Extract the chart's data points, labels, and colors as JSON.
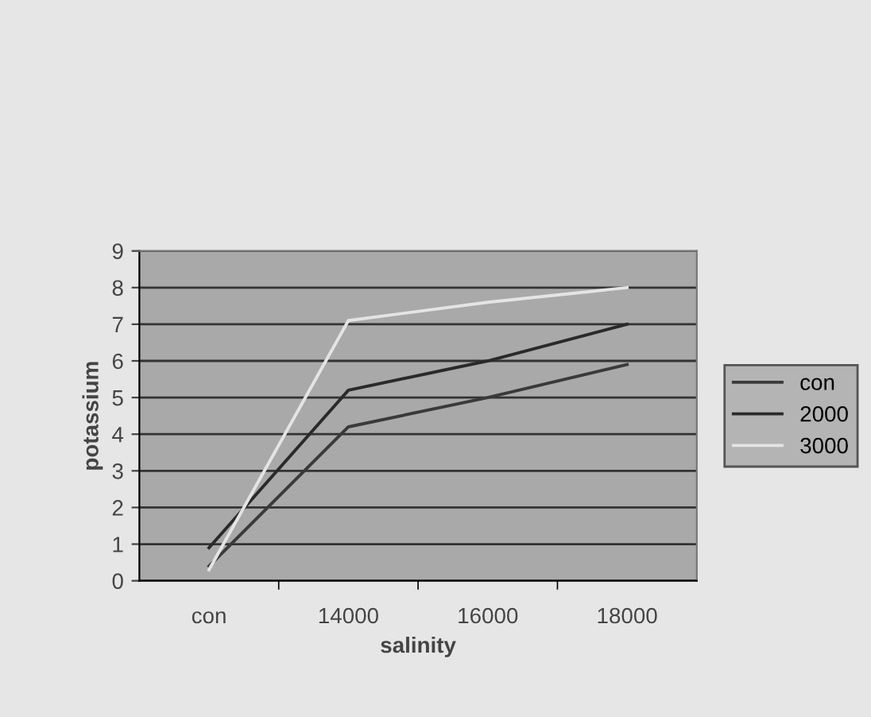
{
  "chart_data": {
    "type": "line",
    "xlabel": "salinity",
    "ylabel": "potassium",
    "categories": [
      "con",
      "14000",
      "16000",
      "18000"
    ],
    "series": [
      {
        "name": "con",
        "color": "#3a3a3a",
        "values": [
          0.4,
          4.2,
          5.0,
          5.9
        ]
      },
      {
        "name": "2000",
        "color": "#2a2a2a",
        "values": [
          0.9,
          5.2,
          6.0,
          7.0
        ]
      },
      {
        "name": "3000",
        "color": "#e4e4e4",
        "values": [
          0.3,
          7.1,
          7.6,
          8.0
        ]
      }
    ],
    "ylim": [
      0,
      9
    ],
    "yticks": [
      0,
      1,
      2,
      3,
      4,
      5,
      6,
      7,
      8,
      9
    ],
    "grid": "y",
    "legend": "right",
    "marker": "none",
    "line_style": "solid"
  }
}
